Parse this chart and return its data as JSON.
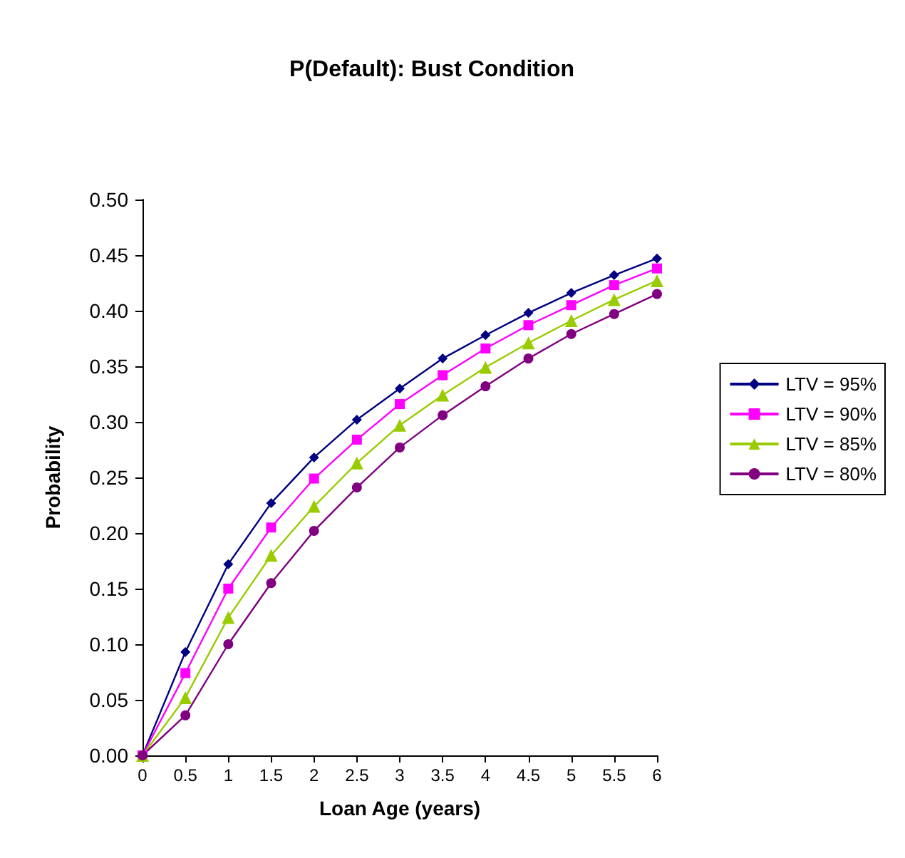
{
  "chart_data": {
    "type": "line",
    "title": "P(Default): Bust Condition",
    "xlabel": "Loan Age (years)",
    "ylabel": "Probability",
    "x": [
      0,
      0.5,
      1,
      1.5,
      2,
      2.5,
      3,
      3.5,
      4,
      4.5,
      5,
      5.5,
      6
    ],
    "xlim": [
      0,
      6
    ],
    "xticks": [
      0,
      0.5,
      1,
      1.5,
      2,
      2.5,
      3,
      3.5,
      4,
      4.5,
      5,
      5.5,
      6
    ],
    "ylim": [
      0,
      0.5
    ],
    "yticks": [
      {
        "value": 0,
        "label": "0.00"
      },
      {
        "value": 0.05,
        "label": "0.05"
      },
      {
        "value": 0.1,
        "label": "0.10"
      },
      {
        "value": 0.15,
        "label": "0.15"
      },
      {
        "value": 0.2,
        "label": "0.20"
      },
      {
        "value": 0.25,
        "label": "0.25"
      },
      {
        "value": 0.3,
        "label": "0.30"
      },
      {
        "value": 0.35,
        "label": "0.35"
      },
      {
        "value": 0.4,
        "label": "0.40"
      },
      {
        "value": 0.45,
        "label": "0.45"
      },
      {
        "value": 0.5,
        "label": "0.50"
      }
    ],
    "grid": false,
    "legend": "right",
    "line_style": "solid",
    "series": [
      {
        "name": "LTV = 95%",
        "color": "#000080",
        "marker": "diamond",
        "values": [
          0,
          0.093,
          0.172,
          0.227,
          0.268,
          0.302,
          0.33,
          0.357,
          0.378,
          0.398,
          0.416,
          0.432,
          0.447
        ]
      },
      {
        "name": "LTV = 90%",
        "color": "#ff00ff",
        "marker": "square",
        "values": [
          0,
          0.074,
          0.15,
          0.205,
          0.249,
          0.284,
          0.316,
          0.342,
          0.366,
          0.387,
          0.405,
          0.423,
          0.438
        ]
      },
      {
        "name": "LTV = 85%",
        "color": "#99cc00",
        "marker": "triangle",
        "values": [
          0,
          0.052,
          0.124,
          0.18,
          0.224,
          0.263,
          0.297,
          0.324,
          0.349,
          0.371,
          0.391,
          0.41,
          0.427
        ]
      },
      {
        "name": "LTV = 80%",
        "color": "#800080",
        "marker": "circle",
        "values": [
          0,
          0.036,
          0.1,
          0.155,
          0.202,
          0.241,
          0.277,
          0.306,
          0.332,
          0.357,
          0.379,
          0.397,
          0.415
        ]
      }
    ]
  }
}
